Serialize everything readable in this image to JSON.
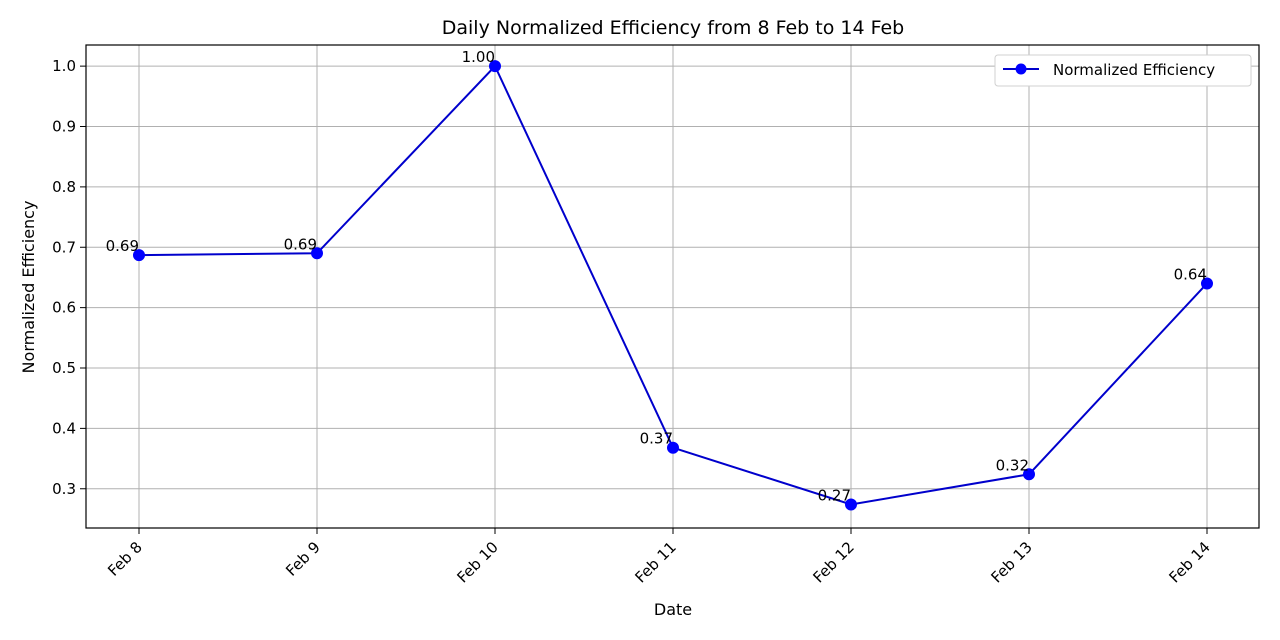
{
  "chart_data": {
    "type": "line",
    "title": "Daily Normalized Efficiency from 8 Feb to 14 Feb",
    "xlabel": "Date",
    "ylabel": "Normalized Efficiency",
    "categories": [
      "Feb 8",
      "Feb 9",
      "Feb 10",
      "Feb 11",
      "Feb 12",
      "Feb 13",
      "Feb 14"
    ],
    "series": [
      {
        "name": "Normalized Efficiency",
        "values": [
          0.687,
          0.69,
          1.0,
          0.368,
          0.274,
          0.324,
          0.64
        ],
        "labels": [
          "0.69",
          "0.69",
          "1.00",
          "0.37",
          "0.27",
          "0.32",
          "0.64"
        ]
      }
    ],
    "ylim": [
      0.235,
      1.035
    ],
    "yticks": [
      0.3,
      0.4,
      0.5,
      0.6,
      0.7,
      0.8,
      0.9,
      1.0
    ],
    "ytick_labels": [
      "0.3",
      "0.4",
      "0.5",
      "0.6",
      "0.7",
      "0.8",
      "0.9",
      "1.0"
    ],
    "grid": true,
    "legend_position": "top-right",
    "colors": {
      "line": "#0000cc",
      "marker": "#0000ff",
      "grid": "#b0b0b0",
      "axis": "#000000"
    }
  }
}
